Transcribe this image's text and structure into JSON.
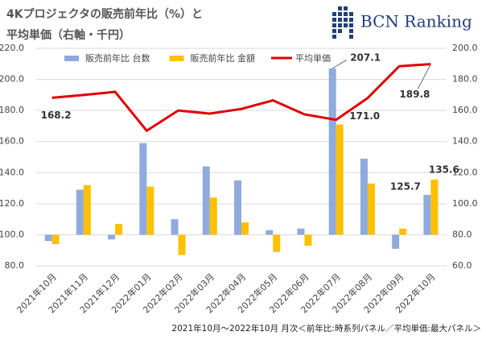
{
  "chart_data": {
    "type": "bar_line",
    "title": [
      "4Kプロジェクタの販売前年比（%）と",
      "平均単価（右軸・千円）"
    ],
    "brand": "BCN Ranking",
    "note": "2021年10月～2022年10月 月次＜前年比:時系列パネル／平均単価:最大パネル＞",
    "categories": [
      "2021年10月",
      "2021年11月",
      "2021年12月",
      "2022年01月",
      "2022年02月",
      "2022年03月",
      "2022年04月",
      "2022年05月",
      "2022年06月",
      "2022年07月",
      "2022年08月",
      "2022年09月",
      "2022年10月"
    ],
    "bar_baseline": 100,
    "series": [
      {
        "name": "販売前年比 台数",
        "type": "bar",
        "color": "#8faadc",
        "values": [
          96,
          129,
          97,
          159,
          110,
          144,
          135,
          103,
          104,
          207.1,
          149,
          91,
          125.7
        ],
        "value_labels": [
          null,
          null,
          null,
          null,
          null,
          null,
          null,
          null,
          null,
          "207.1",
          null,
          null,
          "125.7"
        ]
      },
      {
        "name": "販売前年比 金額",
        "type": "bar",
        "color": "#ffc000",
        "values": [
          94,
          132,
          107,
          131,
          87,
          124,
          108,
          89,
          93,
          171.0,
          133,
          104,
          135.6
        ],
        "value_labels": [
          null,
          null,
          null,
          null,
          null,
          null,
          null,
          null,
          null,
          "171.0",
          null,
          null,
          "135.6"
        ]
      },
      {
        "name": "平均単価",
        "type": "line",
        "axis": "y2",
        "color": "#e00000",
        "values": [
          168.2,
          170,
          172,
          147,
          160,
          158,
          161,
          166.5,
          157.5,
          154,
          168,
          188.5,
          189.8
        ],
        "value_labels": [
          "168.2",
          null,
          null,
          null,
          null,
          null,
          null,
          null,
          null,
          null,
          null,
          null,
          "189.8"
        ]
      }
    ],
    "ylim": [
      80,
      220
    ],
    "yticks": [
      {
        "value": 80,
        "label": "80.0"
      },
      {
        "value": 100,
        "label": "100.0"
      },
      {
        "value": 120,
        "label": "120.0"
      },
      {
        "value": 140,
        "label": "140.0"
      },
      {
        "value": 160,
        "label": "160.0"
      },
      {
        "value": 180,
        "label": "180.0"
      },
      {
        "value": 200,
        "label": "200.0"
      },
      {
        "value": 220,
        "label": "220.0"
      }
    ],
    "y2lim": [
      60,
      200
    ],
    "y2ticks": [
      {
        "value": 60,
        "label": "60.0"
      },
      {
        "value": 80,
        "label": "80.0"
      },
      {
        "value": 100,
        "label": "100.0"
      },
      {
        "value": 120,
        "label": "120.0"
      },
      {
        "value": 140,
        "label": "140.0"
      },
      {
        "value": 160,
        "label": "160.0"
      },
      {
        "value": 180,
        "label": "180.0"
      },
      {
        "value": 200,
        "label": "200.0"
      }
    ],
    "grid": true
  }
}
